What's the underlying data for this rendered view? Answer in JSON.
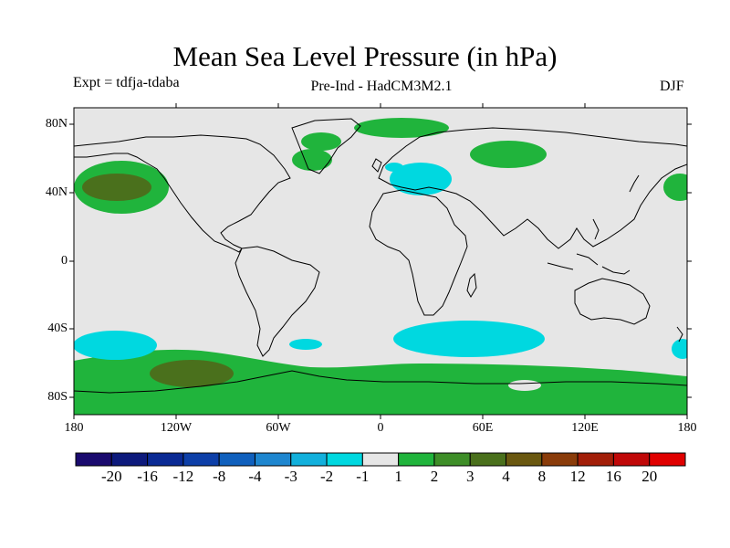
{
  "title": "Mean Sea Level Pressure (in hPa)",
  "experiment": "Expt = tdfja-tdaba",
  "subtitle": "Pre-Ind - HadCM3M2.1",
  "season": "DJF",
  "lat_labels": [
    "80N",
    "40N",
    "0",
    "40S",
    "80S"
  ],
  "lon_labels": [
    "180",
    "120W",
    "60W",
    "0",
    "60E",
    "120E",
    "180"
  ],
  "colorbar": {
    "labels": [
      "-20",
      "-16",
      "-12",
      "-8",
      "-4",
      "-3",
      "-2",
      "-1",
      "1",
      "2",
      "3",
      "4",
      "8",
      "12",
      "16",
      "20"
    ],
    "colors": [
      "#1a0a6e",
      "#0d1a7c",
      "#0a2a94",
      "#0d3fa8",
      "#1060bd",
      "#1e86cf",
      "#12b0dc",
      "#00d8e0",
      "#e6e6e6",
      "#20b43c",
      "#3e8e28",
      "#4a701c",
      "#6a5810",
      "#8a3c0a",
      "#a21e08",
      "#c00808",
      "#e00000"
    ]
  },
  "colors": {
    "background": "#e6e6e6",
    "land_outline": "#000000",
    "positive_1_2": "#20b43c",
    "positive_3_4": "#4a701c",
    "negative_1_2": "#00d8e0"
  }
}
